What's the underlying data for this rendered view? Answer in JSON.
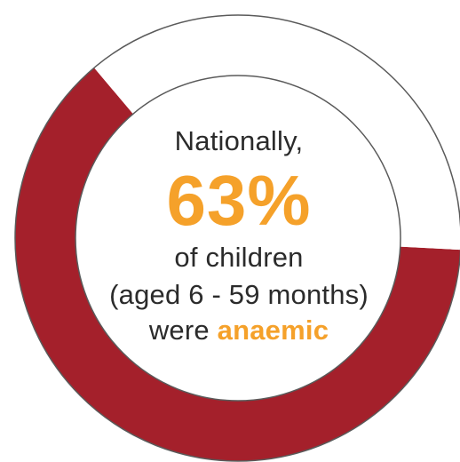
{
  "colors": {
    "anaemic": "#a4202b",
    "remainder": "#ffffff",
    "ring_outline": "#5a5a5a",
    "accent": "#f5a12a",
    "text": "#2b2b2b"
  },
  "chart_data": {
    "type": "pie",
    "style": "donut",
    "values": [
      63,
      37
    ],
    "unit": "%",
    "labels": {
      "line1": "Nationally,",
      "percent": "63%",
      "line3": "of children",
      "line4": "(aged 6 - 59 months)",
      "line5_prefix": "were ",
      "line5_highlight": "anaemic"
    }
  }
}
